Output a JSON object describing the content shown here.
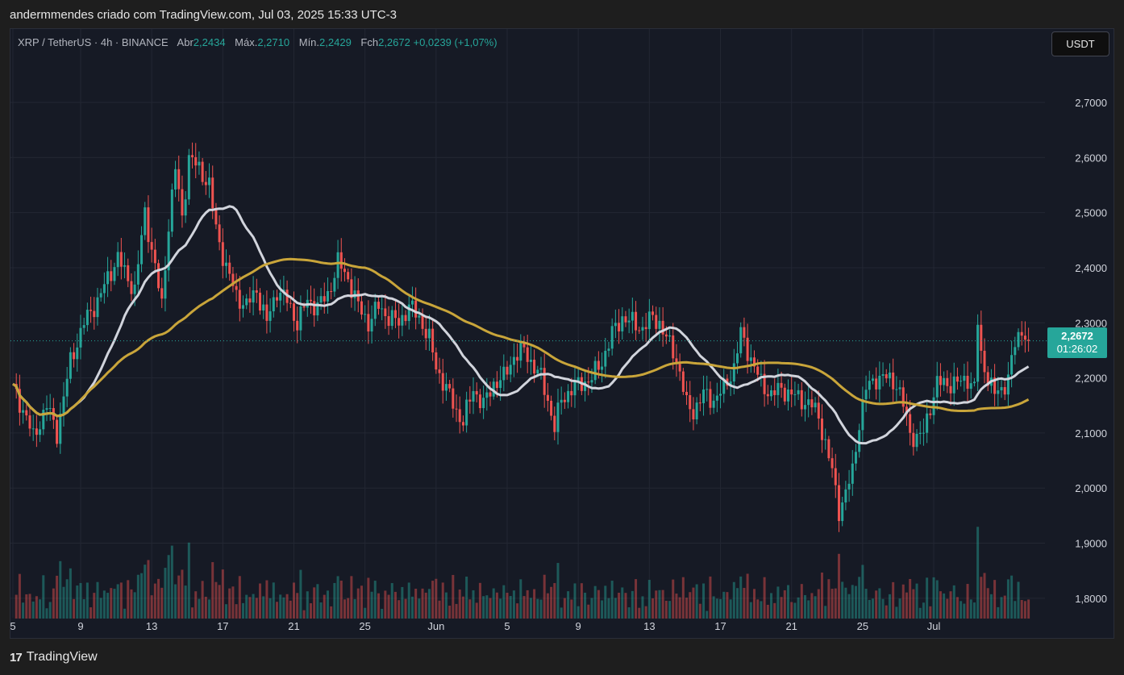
{
  "header": {
    "attribution": "andermmendes criado com TradingView.com, Jul 03, 2025 15:33 UTC-3"
  },
  "legend": {
    "symbol": "XRP / TetherUS · 4h · BINANCE",
    "open_label": "Abr",
    "open_value": "2,2434",
    "high_label": "Máx.",
    "high_value": "2,2710",
    "low_label": "Mín.",
    "low_value": "2,2429",
    "close_label": "Fch",
    "close_value": "2,2672",
    "change": "+0,0239 (+1,07%)"
  },
  "currency_button": "USDT",
  "price_tag": {
    "price": "2,2672",
    "countdown": "01:26:02"
  },
  "footer": {
    "logo_text": "TradingView"
  },
  "colors": {
    "up": "#26a69a",
    "down": "#ef5350",
    "sma_fast": "#d1d4dc",
    "sma_slow": "#c9a53a",
    "background": "#161a25",
    "grid": "#232733"
  },
  "chart_data": {
    "type": "candlestick",
    "symbol": "XRP / TetherUS",
    "interval": "4h",
    "exchange": "BINANCE",
    "x_tick_labels": [
      "5",
      "9",
      "13",
      "17",
      "21",
      "25",
      "Jun",
      "5",
      "9",
      "13",
      "17",
      "21",
      "25",
      "Jul"
    ],
    "y_tick_labels": [
      "2,7000",
      "2,6000",
      "2,5000",
      "2,4000",
      "2,3000",
      "2,2000",
      "2,1000",
      "2,0000",
      "1,9000",
      "1,8000"
    ],
    "ylim": [
      1.75,
      2.76
    ],
    "last_price": 2.2672,
    "grid": true,
    "price_anchors": [
      [
        0,
        2.18
      ],
      [
        4,
        2.13
      ],
      [
        6,
        2.09
      ],
      [
        10,
        2.15
      ],
      [
        13,
        2.1
      ],
      [
        17,
        2.23
      ],
      [
        21,
        2.3
      ],
      [
        25,
        2.34
      ],
      [
        28,
        2.38
      ],
      [
        31,
        2.42
      ],
      [
        33,
        2.39
      ],
      [
        36,
        2.36
      ],
      [
        39,
        2.5
      ],
      [
        42,
        2.4
      ],
      [
        44,
        2.33
      ],
      [
        46,
        2.48
      ],
      [
        48,
        2.58
      ],
      [
        50,
        2.49
      ],
      [
        52,
        2.6
      ],
      [
        55,
        2.58
      ],
      [
        58,
        2.55
      ],
      [
        60,
        2.47
      ],
      [
        63,
        2.4
      ],
      [
        66,
        2.35
      ],
      [
        69,
        2.33
      ],
      [
        72,
        2.36
      ],
      [
        75,
        2.3
      ],
      [
        78,
        2.36
      ],
      [
        81,
        2.34
      ],
      [
        84,
        2.3
      ],
      [
        87,
        2.34
      ],
      [
        90,
        2.33
      ],
      [
        93,
        2.35
      ],
      [
        96,
        2.41
      ],
      [
        99,
        2.38
      ],
      [
        102,
        2.33
      ],
      [
        105,
        2.3
      ],
      [
        108,
        2.33
      ],
      [
        111,
        2.31
      ],
      [
        114,
        2.3
      ],
      [
        117,
        2.33
      ],
      [
        120,
        2.31
      ],
      [
        123,
        2.27
      ],
      [
        125,
        2.22
      ],
      [
        128,
        2.18
      ],
      [
        131,
        2.14
      ],
      [
        133,
        2.12
      ],
      [
        136,
        2.18
      ],
      [
        139,
        2.15
      ],
      [
        142,
        2.19
      ],
      [
        145,
        2.2
      ],
      [
        148,
        2.24
      ],
      [
        151,
        2.25
      ],
      [
        153,
        2.23
      ],
      [
        156,
        2.2
      ],
      [
        158,
        2.16
      ],
      [
        160,
        2.11
      ],
      [
        162,
        2.16
      ],
      [
        165,
        2.18
      ],
      [
        168,
        2.19
      ],
      [
        171,
        2.2
      ],
      [
        174,
        2.23
      ],
      [
        177,
        2.28
      ],
      [
        180,
        2.31
      ],
      [
        183,
        2.3
      ],
      [
        186,
        2.29
      ],
      [
        189,
        2.31
      ],
      [
        191,
        2.3
      ],
      [
        193,
        2.27
      ],
      [
        195,
        2.25
      ],
      [
        197,
        2.21
      ],
      [
        199,
        2.15
      ],
      [
        201,
        2.14
      ],
      [
        204,
        2.17
      ],
      [
        207,
        2.16
      ],
      [
        210,
        2.18
      ],
      [
        213,
        2.22
      ],
      [
        215,
        2.28
      ],
      [
        217,
        2.25
      ],
      [
        219,
        2.22
      ],
      [
        221,
        2.19
      ],
      [
        224,
        2.17
      ],
      [
        227,
        2.18
      ],
      [
        230,
        2.17
      ],
      [
        233,
        2.16
      ],
      [
        236,
        2.15
      ],
      [
        238,
        2.13
      ],
      [
        240,
        2.08
      ],
      [
        242,
        2.03
      ],
      [
        244,
        1.96
      ],
      [
        246,
        1.99
      ],
      [
        248,
        2.03
      ],
      [
        250,
        2.12
      ],
      [
        252,
        2.18
      ],
      [
        255,
        2.2
      ],
      [
        258,
        2.2
      ],
      [
        261,
        2.19
      ],
      [
        263,
        2.15
      ],
      [
        265,
        2.1
      ],
      [
        267,
        2.09
      ],
      [
        269,
        2.1
      ],
      [
        271,
        2.15
      ],
      [
        273,
        2.19
      ],
      [
        276,
        2.19
      ],
      [
        279,
        2.19
      ],
      [
        282,
        2.2
      ],
      [
        284,
        2.18
      ],
      [
        285,
        2.3
      ],
      [
        286,
        2.24
      ],
      [
        288,
        2.2
      ],
      [
        290,
        2.17
      ],
      [
        292,
        2.18
      ],
      [
        294,
        2.2
      ],
      [
        296,
        2.26
      ],
      [
        298,
        2.29
      ],
      [
        300,
        2.2672
      ]
    ]
  }
}
